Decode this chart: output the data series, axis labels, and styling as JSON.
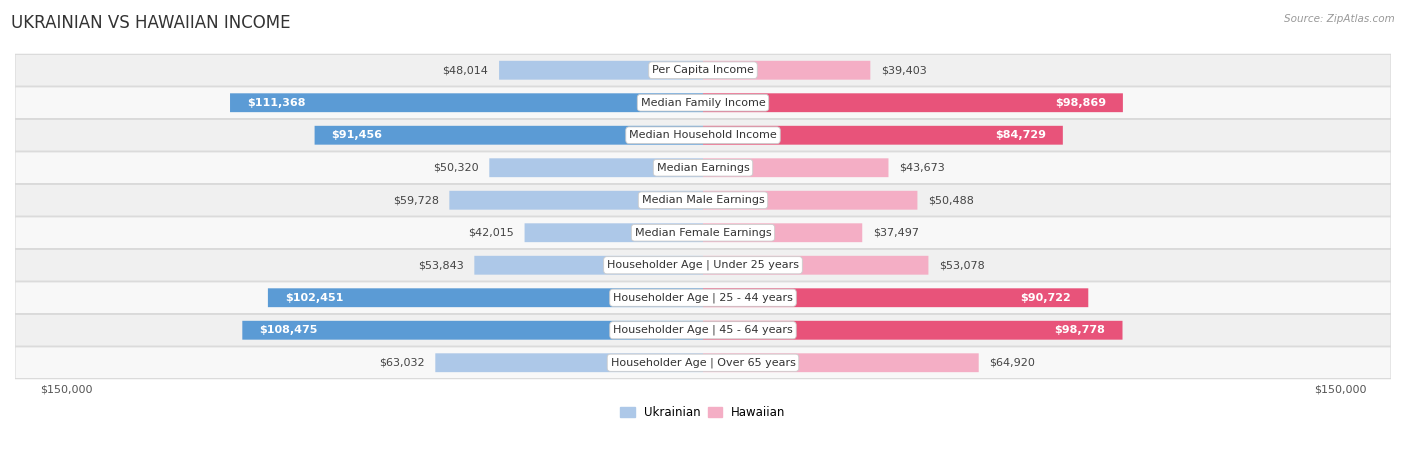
{
  "title": "UKRAINIAN VS HAWAIIAN INCOME",
  "source": "Source: ZipAtlas.com",
  "categories": [
    "Per Capita Income",
    "Median Family Income",
    "Median Household Income",
    "Median Earnings",
    "Median Male Earnings",
    "Median Female Earnings",
    "Householder Age | Under 25 years",
    "Householder Age | 25 - 44 years",
    "Householder Age | 45 - 64 years",
    "Householder Age | Over 65 years"
  ],
  "ukrainian_values": [
    48014,
    111368,
    91456,
    50320,
    59728,
    42015,
    53843,
    102451,
    108475,
    63032
  ],
  "hawaiian_values": [
    39403,
    98869,
    84729,
    43673,
    50488,
    37497,
    53078,
    90722,
    98778,
    64920
  ],
  "ukrainian_labels": [
    "$48,014",
    "$111,368",
    "$91,456",
    "$50,320",
    "$59,728",
    "$42,015",
    "$53,843",
    "$102,451",
    "$108,475",
    "$63,032"
  ],
  "hawaiian_labels": [
    "$39,403",
    "$98,869",
    "$84,729",
    "$43,673",
    "$50,488",
    "$37,497",
    "$53,078",
    "$90,722",
    "$98,778",
    "$64,920"
  ],
  "max_value": 150000,
  "ukrainian_light": "#adc8e8",
  "ukrainian_dark": "#5b9bd5",
  "hawaiian_light": "#f4aec5",
  "hawaiian_dark": "#e8537a",
  "inside_label_threshold": 70000,
  "background_row_odd": "#f0f0f0",
  "background_row_even": "#f8f8f8",
  "row_border": "#d8d8d8",
  "title_fontsize": 12,
  "label_fontsize": 8,
  "category_fontsize": 8,
  "legend_fontsize": 8.5,
  "axis_label_fontsize": 8
}
